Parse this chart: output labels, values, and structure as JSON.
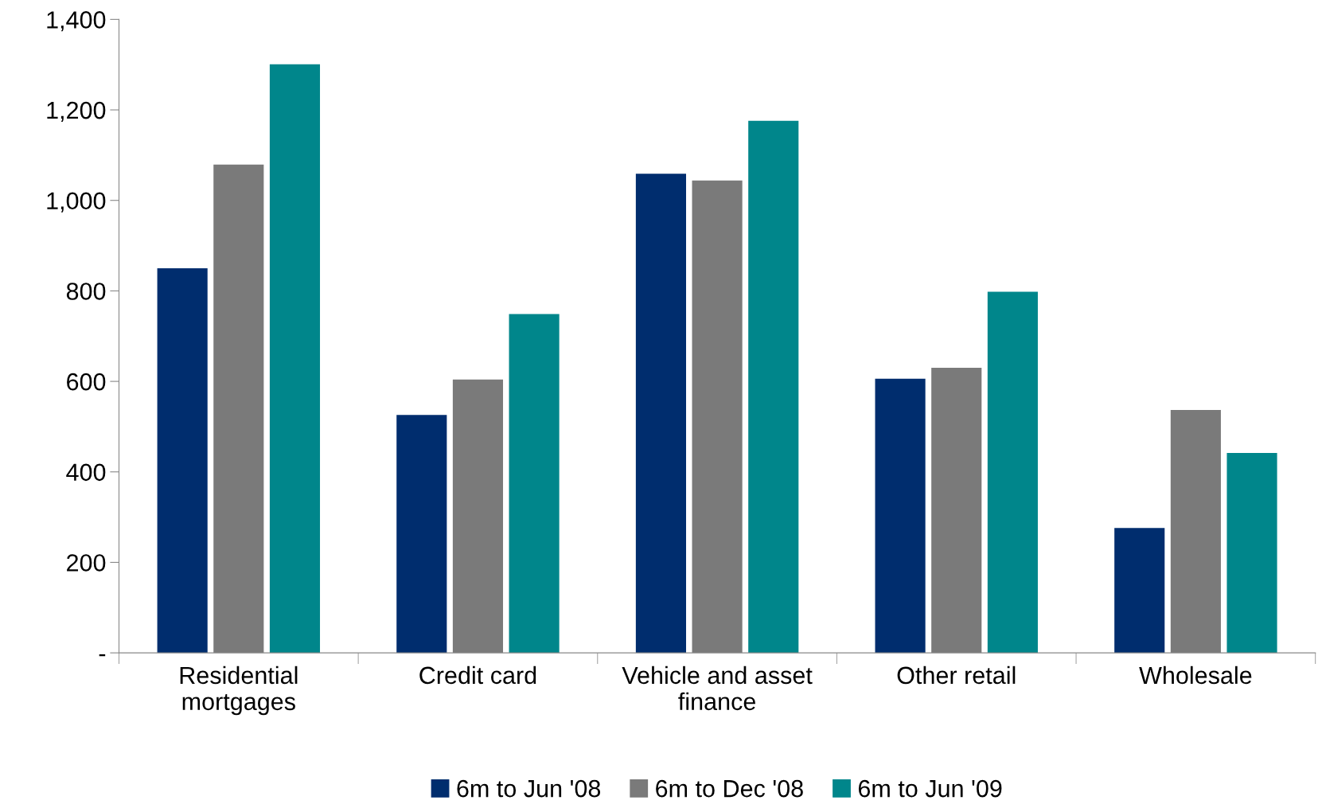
{
  "chart_data": {
    "type": "bar",
    "categories": [
      "Residential\nmortgages",
      "Credit card",
      "Vehicle and asset\nfinance",
      "Other retail",
      "Wholesale"
    ],
    "series": [
      {
        "name": "6m to Jun '08",
        "color": "#002d6e",
        "values": [
          850,
          526,
          1059,
          606,
          276
        ]
      },
      {
        "name": "6m to Dec '08",
        "color": "#7a7a7a",
        "values": [
          1079,
          604,
          1044,
          630,
          537
        ]
      },
      {
        "name": "6m to Jun '09",
        "color": "#00868b",
        "values": [
          1301,
          749,
          1176,
          798,
          442
        ]
      }
    ],
    "ylim": [
      0,
      1400
    ],
    "yticks": [
      {
        "value": 0,
        "label": "-"
      },
      200,
      400,
      600,
      800,
      {
        "value": 1000,
        "label": "1,000"
      },
      {
        "value": 1200,
        "label": "1,200"
      },
      {
        "value": 1400,
        "label": "1,400"
      }
    ],
    "grid": false,
    "legend": "bottom"
  }
}
